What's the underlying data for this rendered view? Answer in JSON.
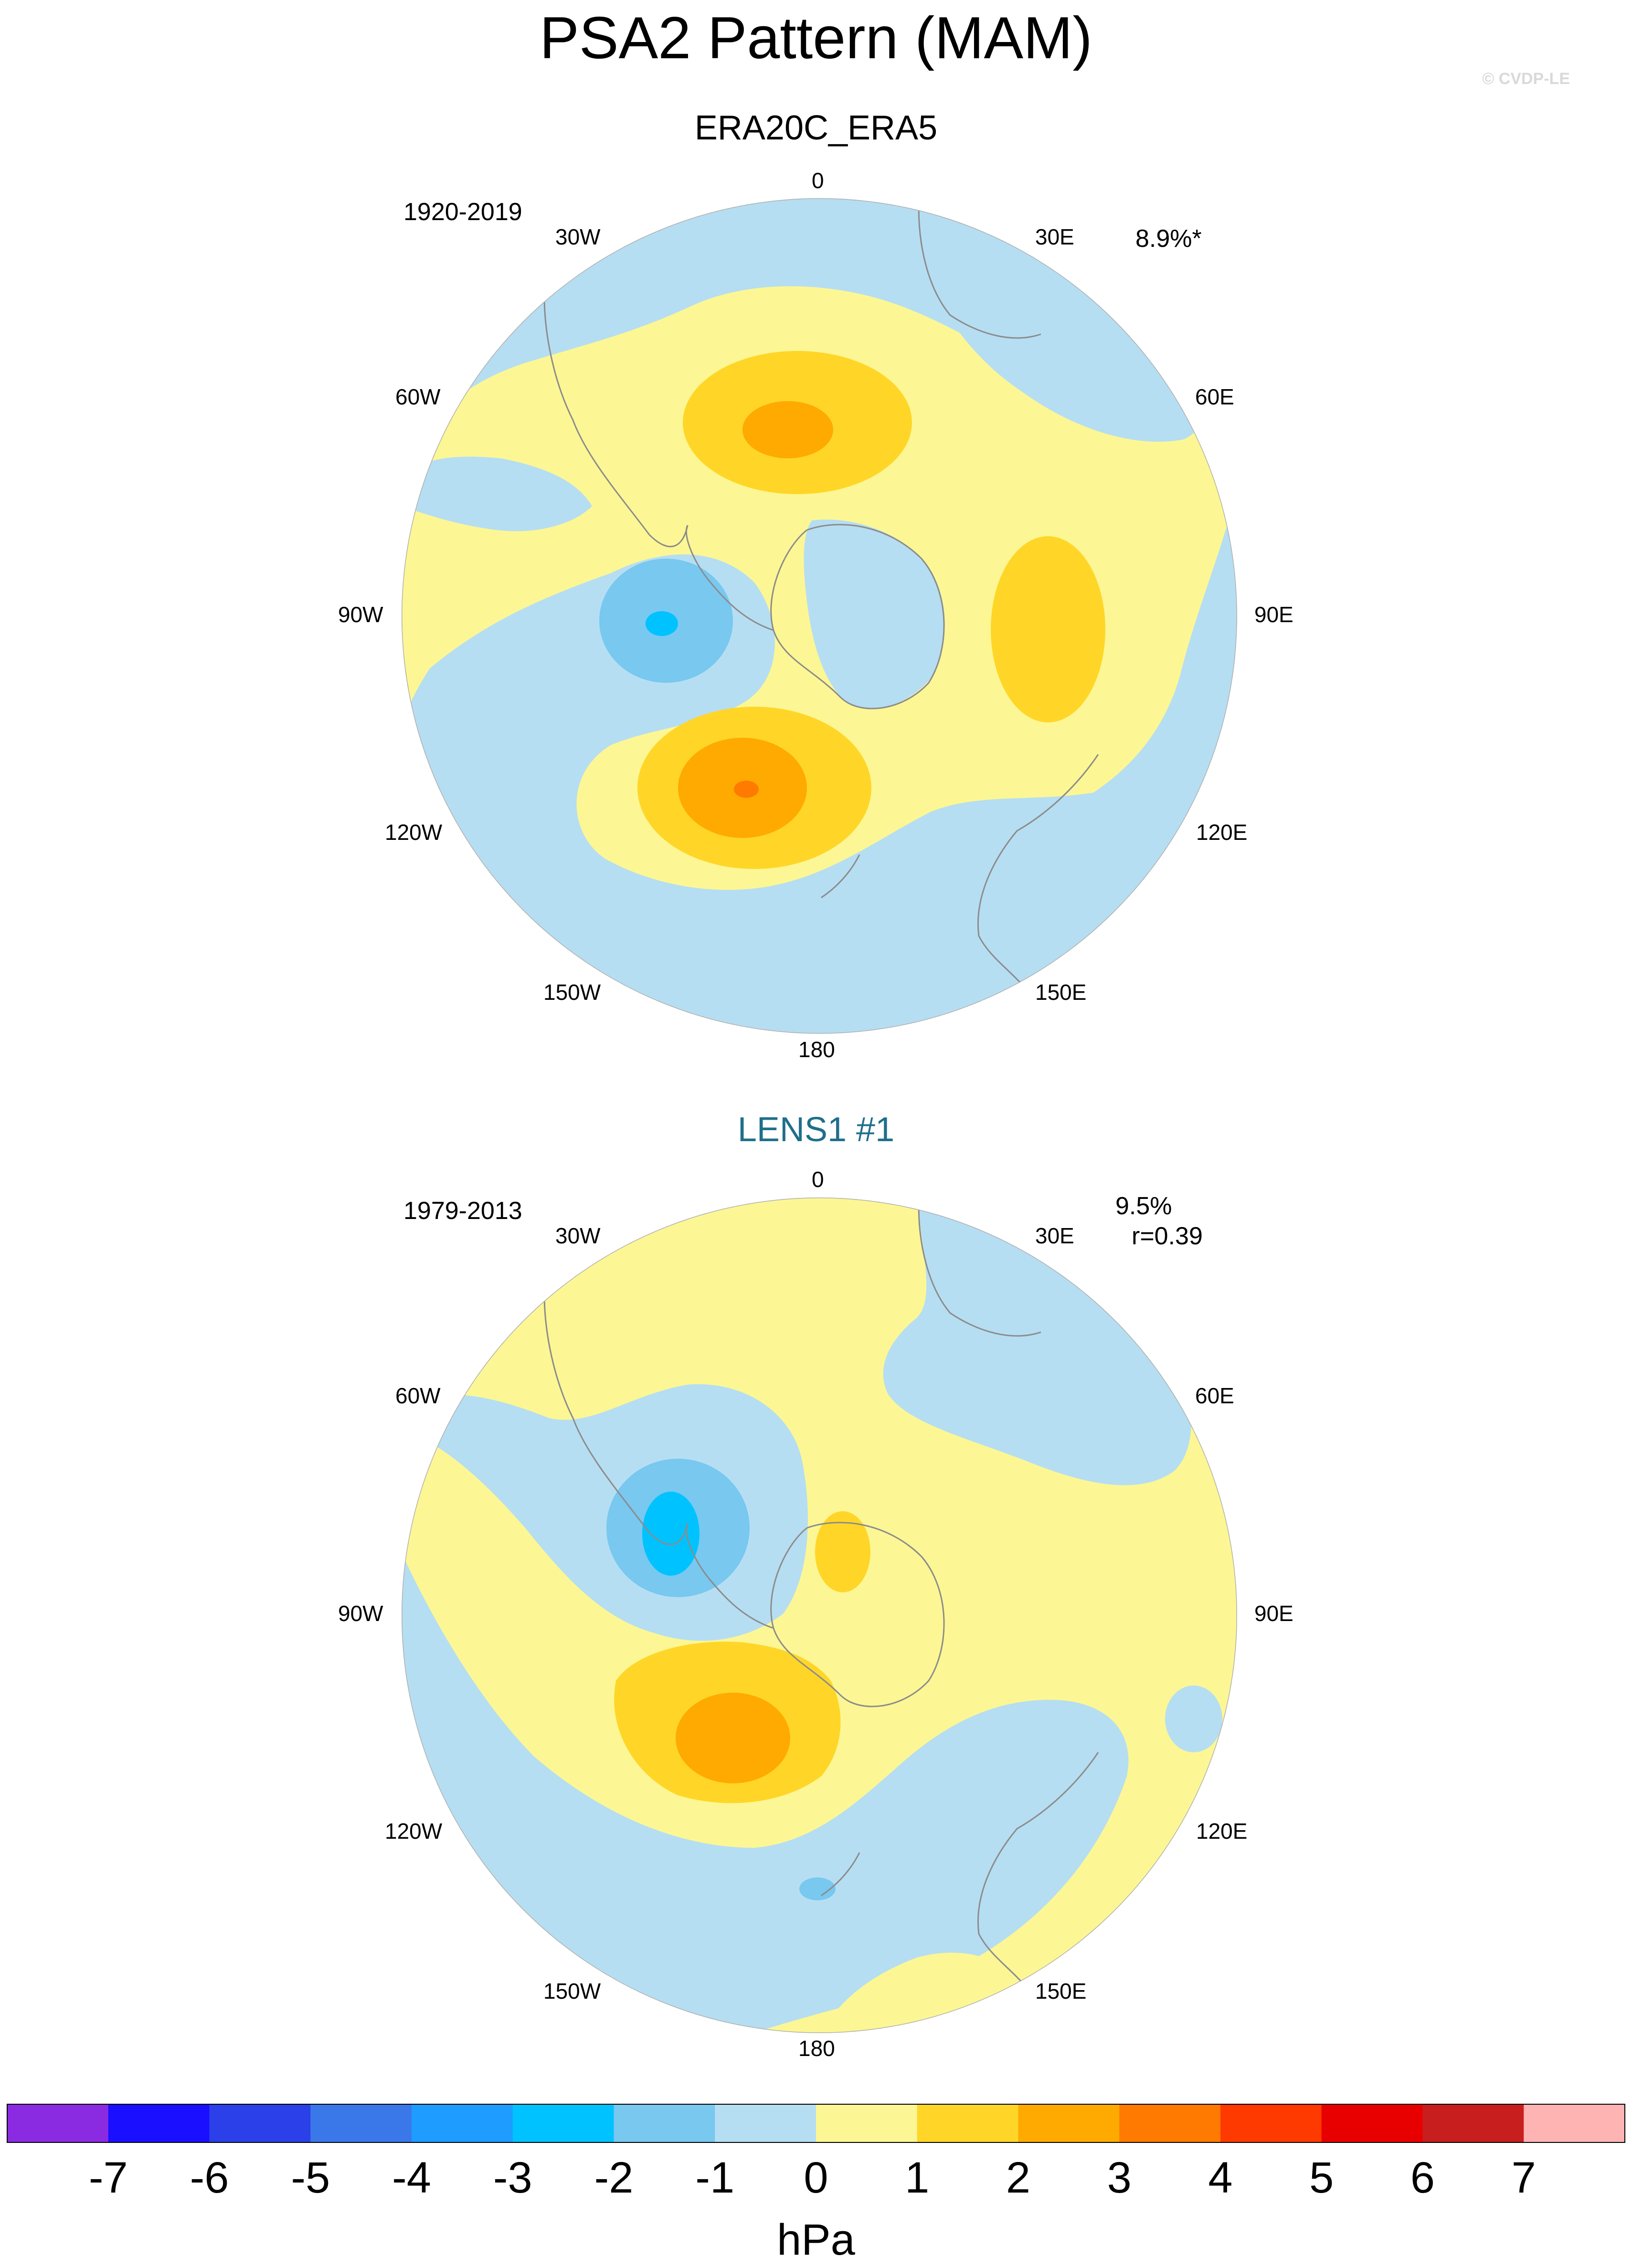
{
  "title": "PSA2 Pattern (MAM)",
  "copyright": "© CVDP-LE",
  "panels": [
    {
      "title": "ERA20C_ERA5",
      "period": "1920-2019",
      "variance": "8.9%*",
      "correlation": "",
      "lon_labels": [
        "0",
        "30E",
        "60E",
        "90E",
        "120E",
        "150E",
        "180",
        "150W",
        "120W",
        "90W",
        "60W",
        "30W"
      ]
    },
    {
      "title": "LENS1 #1",
      "period": "1979-2013",
      "variance": "9.5%",
      "correlation": "r=0.39",
      "lon_labels": [
        "0",
        "30E",
        "60E",
        "90E",
        "120E",
        "150E",
        "180",
        "150W",
        "120W",
        "90W",
        "60W",
        "30W"
      ]
    }
  ],
  "colorbar": {
    "unit": "hPa",
    "ticks": [
      "-7",
      "-6",
      "-5",
      "-4",
      "-3",
      "-2",
      "-1",
      "0",
      "1",
      "2",
      "3",
      "4",
      "5",
      "6",
      "7"
    ],
    "colors": [
      "#8a2be2",
      "#1a0fff",
      "#2b40e8",
      "#3a78ea",
      "#1e9cff",
      "#00c2ff",
      "#78c8f0",
      "#b6def2",
      "#fcf794",
      "#ffd628",
      "#ffaa00",
      "#ff7a00",
      "#ff3a00",
      "#e80000",
      "#c81e1e",
      "#ffb4b4"
    ]
  },
  "palette": {
    "neg1": "#b6def2",
    "neg2": "#78c8f0",
    "neg3": "#00c2ff",
    "pos1": "#fcf794",
    "pos2": "#ffd628",
    "pos3": "#ffaa00",
    "pos4": "#ff7a00"
  }
}
